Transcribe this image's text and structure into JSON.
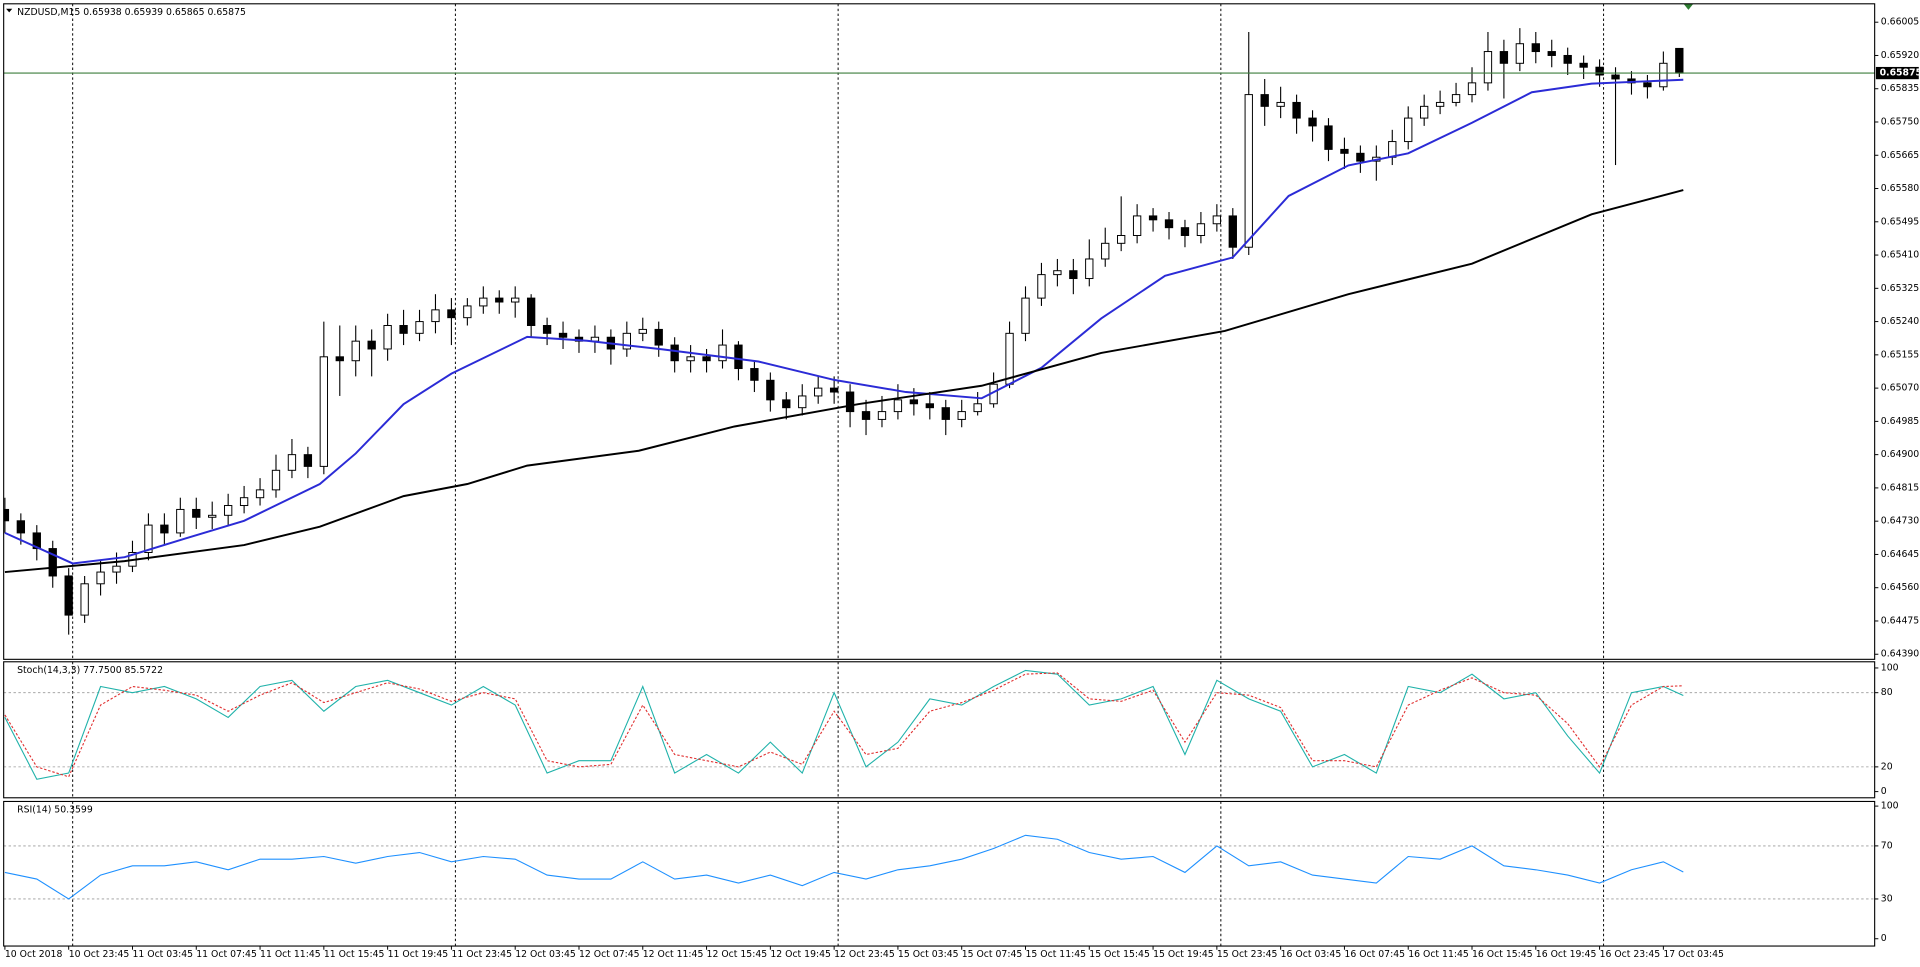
{
  "chart_data": [
    {
      "type": "candlestick",
      "title": "NZDUSD,M15  0.65938 0.65939 0.65865 0.65875",
      "xlim": [
        0,
        469
      ],
      "ylim": [
        0.64377,
        0.66052
      ],
      "yticks": [
        0.66005,
        {
          "value": 0.6592,
          "label": "0.65920"
        },
        0.65835,
        {
          "value": 0.6575,
          "label": "0.65750"
        },
        0.65665,
        {
          "value": 0.6558,
          "label": "0.65580"
        },
        0.65495,
        {
          "value": 0.6541,
          "label": "0.65410"
        },
        0.65325,
        {
          "value": 0.6524,
          "label": "0.65240"
        },
        0.65155,
        {
          "value": 0.6507,
          "label": "0.65070"
        },
        0.64985,
        {
          "value": 0.649,
          "label": "0.64900"
        },
        0.64815,
        {
          "value": 0.6473,
          "label": "0.64730"
        },
        0.64645,
        {
          "value": 0.6456,
          "label": "0.64560"
        },
        0.64475,
        {
          "value": 0.6439,
          "label": "0.64390"
        }
      ],
      "current_price": 0.65875,
      "current_price_color": "#3c7d3c",
      "period_separators": [
        17,
        113,
        209,
        305,
        401
      ],
      "bull_color": "#ffffff",
      "bear_color": "#000000",
      "x": [
        0,
        4,
        8,
        12,
        16,
        20,
        24,
        28,
        32,
        36,
        40,
        44,
        48,
        52,
        56,
        60,
        64,
        68,
        72,
        76,
        80,
        84,
        88,
        92,
        96,
        100,
        104,
        108,
        112,
        116,
        120,
        124,
        128,
        132,
        136,
        140,
        144,
        148,
        152,
        156,
        160,
        164,
        168,
        172,
        176,
        180,
        184,
        188,
        192,
        196,
        200,
        204,
        208,
        212,
        216,
        220,
        224,
        228,
        232,
        236,
        240,
        244,
        248,
        252,
        256,
        260,
        264,
        268,
        272,
        276,
        280,
        284,
        288,
        292,
        296,
        300,
        304,
        308,
        312,
        316,
        320,
        324,
        328,
        332,
        336,
        340,
        344,
        348,
        352,
        356,
        360,
        364,
        368,
        372,
        376,
        380,
        384,
        388,
        392,
        396,
        400,
        404,
        408,
        412,
        416,
        420
      ],
      "open": [
        0.6476,
        0.64731,
        0.647,
        0.6466,
        0.6459,
        0.6449,
        0.6457,
        0.646,
        0.64615,
        0.6465,
        0.6472,
        0.647,
        0.6476,
        0.6474,
        0.64745,
        0.6477,
        0.6479,
        0.6481,
        0.6486,
        0.649,
        0.6487,
        0.6515,
        0.6514,
        0.6519,
        0.6517,
        0.6523,
        0.6521,
        0.6524,
        0.6527,
        0.6525,
        0.6528,
        0.653,
        0.6529,
        0.653,
        0.6523,
        0.6521,
        0.652,
        0.6519,
        0.652,
        0.6517,
        0.6521,
        0.6522,
        0.6518,
        0.6514,
        0.6515,
        0.6514,
        0.6518,
        0.6512,
        0.6509,
        0.6504,
        0.6502,
        0.6505,
        0.6507,
        0.6506,
        0.6501,
        0.6499,
        0.6501,
        0.6504,
        0.6503,
        0.6502,
        0.6499,
        0.6501,
        0.6503,
        0.6508,
        0.6521,
        0.653,
        0.6536,
        0.6537,
        0.6535,
        0.654,
        0.6544,
        0.6546,
        0.6551,
        0.655,
        0.6548,
        0.6546,
        0.6549,
        0.6551,
        0.6543,
        0.6582,
        0.6579,
        0.658,
        0.6576,
        0.6574,
        0.6568,
        0.6567,
        0.6565,
        0.6566,
        0.657,
        0.6576,
        0.6579,
        0.658,
        0.6582,
        0.6585,
        0.6593,
        0.659,
        0.6595,
        0.6593,
        0.6592,
        0.659,
        0.6589,
        0.6587,
        0.6586,
        0.6585,
        0.6584,
        0.65938
      ],
      "high": [
        0.6479,
        0.6475,
        0.6472,
        0.6468,
        0.6461,
        0.6459,
        0.6463,
        0.6465,
        0.6468,
        0.6475,
        0.6475,
        0.6479,
        0.6479,
        0.6478,
        0.648,
        0.6482,
        0.6484,
        0.649,
        0.6494,
        0.6492,
        0.6524,
        0.6523,
        0.6523,
        0.6522,
        0.6526,
        0.6527,
        0.6527,
        0.6531,
        0.653,
        0.653,
        0.6533,
        0.6532,
        0.6533,
        0.6531,
        0.6525,
        0.6524,
        0.6522,
        0.6523,
        0.6522,
        0.6524,
        0.6525,
        0.6524,
        0.652,
        0.6518,
        0.6517,
        0.6522,
        0.6519,
        0.6514,
        0.6511,
        0.6506,
        0.6508,
        0.651,
        0.651,
        0.6508,
        0.6504,
        0.6505,
        0.6508,
        0.6507,
        0.6506,
        0.6504,
        0.6504,
        0.6506,
        0.6511,
        0.6524,
        0.6533,
        0.6539,
        0.654,
        0.654,
        0.6545,
        0.6548,
        0.6556,
        0.6554,
        0.6553,
        0.6552,
        0.655,
        0.6552,
        0.6554,
        0.6553,
        0.6598,
        0.6586,
        0.6584,
        0.6582,
        0.6578,
        0.6576,
        0.6571,
        0.6569,
        0.6569,
        0.6573,
        0.6579,
        0.6582,
        0.6583,
        0.6585,
        0.6589,
        0.6598,
        0.6596,
        0.6599,
        0.6598,
        0.6596,
        0.6594,
        0.6592,
        0.6591,
        0.6589,
        0.6588,
        0.6587,
        0.6593,
        0.65939
      ],
      "low": [
        0.647,
        0.6467,
        0.6463,
        0.6456,
        0.6444,
        0.6447,
        0.6454,
        0.6457,
        0.646,
        0.6463,
        0.6467,
        0.6469,
        0.6471,
        0.6471,
        0.6472,
        0.6475,
        0.6477,
        0.6479,
        0.6484,
        0.6484,
        0.6485,
        0.6505,
        0.651,
        0.651,
        0.6514,
        0.6518,
        0.6519,
        0.6521,
        0.6518,
        0.6523,
        0.6526,
        0.6526,
        0.6525,
        0.652,
        0.6518,
        0.6517,
        0.6516,
        0.6516,
        0.6513,
        0.6515,
        0.6519,
        0.6515,
        0.6511,
        0.6511,
        0.6511,
        0.6512,
        0.6509,
        0.6506,
        0.6501,
        0.6499,
        0.65,
        0.6503,
        0.6503,
        0.6497,
        0.6495,
        0.6497,
        0.6499,
        0.65,
        0.6499,
        0.6495,
        0.6497,
        0.65,
        0.6502,
        0.6507,
        0.6519,
        0.6528,
        0.6533,
        0.6531,
        0.6533,
        0.6538,
        0.6542,
        0.6544,
        0.6547,
        0.6545,
        0.6543,
        0.6544,
        0.6547,
        0.654,
        0.6541,
        0.6574,
        0.6576,
        0.6572,
        0.657,
        0.6565,
        0.6563,
        0.6562,
        0.656,
        0.6564,
        0.6568,
        0.6574,
        0.6577,
        0.6579,
        0.658,
        0.6583,
        0.6581,
        0.6588,
        0.659,
        0.6589,
        0.6587,
        0.6586,
        0.6584,
        0.6564,
        0.6582,
        0.6581,
        0.6583,
        0.65865
      ],
      "close": [
        0.64731,
        0.647,
        0.6466,
        0.6459,
        0.6449,
        0.6457,
        0.646,
        0.64615,
        0.6465,
        0.6472,
        0.647,
        0.6476,
        0.6474,
        0.64745,
        0.6477,
        0.6479,
        0.6481,
        0.6486,
        0.649,
        0.6487,
        0.6515,
        0.6514,
        0.6519,
        0.6517,
        0.6523,
        0.6521,
        0.6524,
        0.6527,
        0.6525,
        0.6528,
        0.653,
        0.6529,
        0.653,
        0.6523,
        0.6521,
        0.652,
        0.6519,
        0.652,
        0.6517,
        0.6521,
        0.6522,
        0.6518,
        0.6514,
        0.6515,
        0.6514,
        0.6518,
        0.6512,
        0.6509,
        0.6504,
        0.6502,
        0.6505,
        0.6507,
        0.6506,
        0.6501,
        0.6499,
        0.6501,
        0.6504,
        0.6503,
        0.6502,
        0.6499,
        0.6501,
        0.6503,
        0.6508,
        0.6521,
        0.653,
        0.6536,
        0.6537,
        0.6535,
        0.654,
        0.6544,
        0.6546,
        0.6551,
        0.655,
        0.6548,
        0.6546,
        0.6549,
        0.6551,
        0.6543,
        0.6582,
        0.6579,
        0.658,
        0.6576,
        0.6574,
        0.6568,
        0.6567,
        0.6565,
        0.6566,
        0.657,
        0.6576,
        0.6579,
        0.658,
        0.6582,
        0.6585,
        0.6593,
        0.659,
        0.6595,
        0.6593,
        0.6592,
        0.659,
        0.6589,
        0.6587,
        0.6586,
        0.6585,
        0.6584,
        0.659,
        0.65875
      ],
      "series": [
        {
          "color": "#2b2bd6",
          "x": [
            0,
            17,
            30,
            45,
            60,
            79,
            88,
            100,
            112,
            131,
            146,
            165,
            189,
            208,
            226,
            245,
            260,
            275,
            291,
            308,
            322,
            337,
            352,
            368,
            383,
            398,
            421
          ],
          "values": [
            0.647,
            0.64622,
            0.64638,
            0.64685,
            0.64731,
            0.64825,
            0.64903,
            0.65029,
            0.65107,
            0.65201,
            0.65191,
            0.65169,
            0.65138,
            0.65091,
            0.6506,
            0.65044,
            0.65122,
            0.65248,
            0.65357,
            0.65404,
            0.65561,
            0.65639,
            0.6567,
            0.65748,
            0.65826,
            0.65848,
            0.65858
          ]
        },
        {
          "color": "#000000",
          "x": [
            0,
            30,
            60,
            79,
            100,
            116,
            131,
            159,
            183,
            214,
            245,
            275,
            306,
            337,
            368,
            398,
            421
          ],
          "values": [
            0.646,
            0.64628,
            0.64669,
            0.64716,
            0.64794,
            0.64825,
            0.64872,
            0.6491,
            0.64972,
            0.65029,
            0.65076,
            0.6516,
            0.65216,
            0.6531,
            0.65388,
            0.65514,
            0.65576
          ]
        }
      ]
    },
    {
      "type": "line",
      "title": "Stoch(14,3,3) 77.7500 85.5722",
      "xlim": [
        0,
        469
      ],
      "ylim": [
        -5,
        105
      ],
      "yticks": [
        100,
        80,
        20,
        0
      ],
      "levels": [
        80,
        20
      ],
      "x": [
        0,
        8,
        16,
        24,
        32,
        40,
        48,
        56,
        64,
        72,
        80,
        88,
        96,
        104,
        112,
        120,
        128,
        136,
        144,
        152,
        160,
        168,
        176,
        184,
        192,
        200,
        208,
        216,
        224,
        232,
        240,
        248,
        256,
        264,
        272,
        280,
        288,
        296,
        304,
        312,
        320,
        328,
        336,
        344,
        352,
        360,
        368,
        376,
        384,
        392,
        400,
        408,
        416,
        421
      ],
      "series": [
        {
          "color": "#20b2aa",
          "values": [
            60,
            10,
            15,
            85,
            80,
            85,
            75,
            60,
            85,
            90,
            65,
            85,
            90,
            80,
            70,
            85,
            70,
            15,
            25,
            25,
            85,
            15,
            30,
            15,
            40,
            15,
            80,
            20,
            40,
            75,
            70,
            85,
            98,
            95,
            70,
            75,
            85,
            30,
            90,
            75,
            65,
            20,
            30,
            15,
            85,
            80,
            95,
            75,
            80,
            45,
            15,
            80,
            85,
            77.75
          ]
        },
        {
          "color": "#e03030",
          "dashed": true,
          "values": [
            62,
            20,
            12,
            70,
            85,
            82,
            78,
            65,
            78,
            88,
            72,
            80,
            88,
            83,
            73,
            80,
            75,
            25,
            20,
            22,
            70,
            30,
            25,
            20,
            32,
            22,
            65,
            30,
            35,
            65,
            72,
            82,
            95,
            96,
            75,
            73,
            82,
            40,
            80,
            78,
            68,
            25,
            25,
            20,
            70,
            82,
            92,
            80,
            78,
            55,
            20,
            70,
            85,
            85.5722
          ]
        }
      ]
    },
    {
      "type": "line",
      "title": "RSI(14) 50.3599",
      "xlim": [
        0,
        469
      ],
      "ylim": [
        -5.5,
        103.5
      ],
      "yticks": [
        100,
        70,
        30,
        0
      ],
      "levels": [
        70,
        30
      ],
      "x": [
        0,
        8,
        16,
        24,
        32,
        40,
        48,
        56,
        64,
        72,
        80,
        88,
        96,
        104,
        112,
        120,
        128,
        136,
        144,
        152,
        160,
        168,
        176,
        184,
        192,
        200,
        208,
        216,
        224,
        232,
        240,
        248,
        256,
        264,
        272,
        280,
        288,
        296,
        304,
        312,
        320,
        328,
        336,
        344,
        352,
        360,
        368,
        376,
        384,
        392,
        400,
        408,
        416,
        421
      ],
      "xticks": [
        {
          "value": 0,
          "label": "10 Oct 2018"
        },
        {
          "value": 16,
          "label": "10 Oct 23:45"
        },
        {
          "value": 32,
          "label": "11 Oct 03:45"
        },
        {
          "value": 48,
          "label": "11 Oct 07:45"
        },
        {
          "value": 64,
          "label": "11 Oct 11:45"
        },
        {
          "value": 80,
          "label": "11 Oct 15:45"
        },
        {
          "value": 96,
          "label": "11 Oct 19:45"
        },
        {
          "value": 112,
          "label": "11 Oct 23:45"
        },
        {
          "value": 128,
          "label": "12 Oct 03:45"
        },
        {
          "value": 144,
          "label": "12 Oct 07:45"
        },
        {
          "value": 160,
          "label": "12 Oct 11:45"
        },
        {
          "value": 176,
          "label": "12 Oct 15:45"
        },
        {
          "value": 192,
          "label": "12 Oct 19:45"
        },
        {
          "value": 208,
          "label": "12 Oct 23:45"
        },
        {
          "value": 224,
          "label": "15 Oct 03:45"
        },
        {
          "value": 240,
          "label": "15 Oct 07:45"
        },
        {
          "value": 256,
          "label": "15 Oct 11:45"
        },
        {
          "value": 272,
          "label": "15 Oct 15:45"
        },
        {
          "value": 288,
          "label": "15 Oct 19:45"
        },
        {
          "value": 304,
          "label": "15 Oct 23:45"
        },
        {
          "value": 320,
          "label": "16 Oct 03:45"
        },
        {
          "value": 336,
          "label": "16 Oct 07:45"
        },
        {
          "value": 352,
          "label": "16 Oct 11:45"
        },
        {
          "value": 368,
          "label": "16 Oct 15:45"
        },
        {
          "value": 384,
          "label": "16 Oct 19:45"
        },
        {
          "value": 400,
          "label": "16 Oct 23:45"
        },
        {
          "value": 416,
          "label": "17 Oct 03:45"
        }
      ],
      "series": [
        {
          "color": "#1e90ff",
          "values": [
            50,
            45,
            30,
            48,
            55,
            55,
            58,
            52,
            60,
            60,
            62,
            57,
            62,
            65,
            58,
            62,
            60,
            48,
            45,
            45,
            58,
            45,
            48,
            42,
            48,
            40,
            50,
            45,
            52,
            55,
            60,
            68,
            78,
            75,
            65,
            60,
            62,
            50,
            70,
            55,
            58,
            48,
            45,
            42,
            62,
            60,
            70,
            55,
            52,
            48,
            42,
            52,
            58,
            50.3599
          ]
        }
      ]
    }
  ]
}
